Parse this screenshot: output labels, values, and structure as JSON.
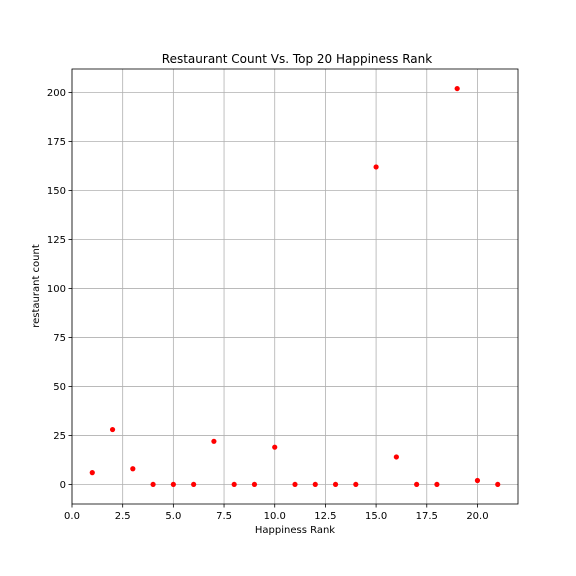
{
  "chart_data": {
    "type": "scatter",
    "title": "Restaurant Count Vs. Top 20 Happiness Rank",
    "xlabel": "Happiness Rank",
    "ylabel": "restaurant count",
    "xlim": [
      0,
      22
    ],
    "ylim": [
      -10,
      212
    ],
    "xticks": [
      0,
      2.5,
      5,
      7.5,
      10,
      12.5,
      15,
      17.5,
      20
    ],
    "xtick_labels": [
      "0.0",
      "2.5",
      "5.0",
      "7.5",
      "10.0",
      "12.5",
      "15.0",
      "17.5",
      "20.0"
    ],
    "yticks": [
      0,
      25,
      50,
      75,
      100,
      125,
      150,
      175,
      200
    ],
    "ytick_labels": [
      "0",
      "25",
      "50",
      "75",
      "100",
      "125",
      "150",
      "175",
      "200"
    ],
    "grid": true,
    "marker_color": "#ff0000",
    "x": [
      1,
      2,
      3,
      4,
      5,
      6,
      7,
      8,
      9,
      10,
      11,
      12,
      13,
      14,
      15,
      16,
      17,
      18,
      19,
      20,
      21
    ],
    "y": [
      6,
      28,
      8,
      0,
      0,
      0,
      22,
      0,
      0,
      19,
      0,
      0,
      0,
      0,
      162,
      14,
      0,
      0,
      202,
      2,
      0
    ]
  }
}
